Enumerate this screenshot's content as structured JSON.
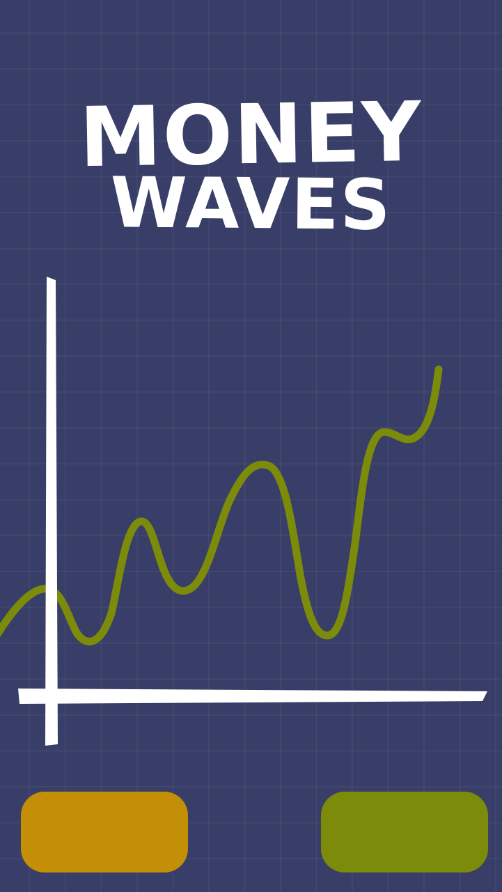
{
  "title": {
    "line1": "MONEY",
    "line2": "WAVES"
  },
  "colors": {
    "background": "#383e67",
    "grid": "#444a72",
    "axis": "#ffffff",
    "wave": "#7d8b0a",
    "left_button": "#c38f06",
    "right_button": "#7d8b0a"
  },
  "graph": {
    "wave_color": "#7d8b0a",
    "axis_color": "#ffffff"
  },
  "buttons": {
    "left": {
      "label": "",
      "color": "#c38f06"
    },
    "right": {
      "label": "",
      "color": "#7d8b0a"
    }
  }
}
